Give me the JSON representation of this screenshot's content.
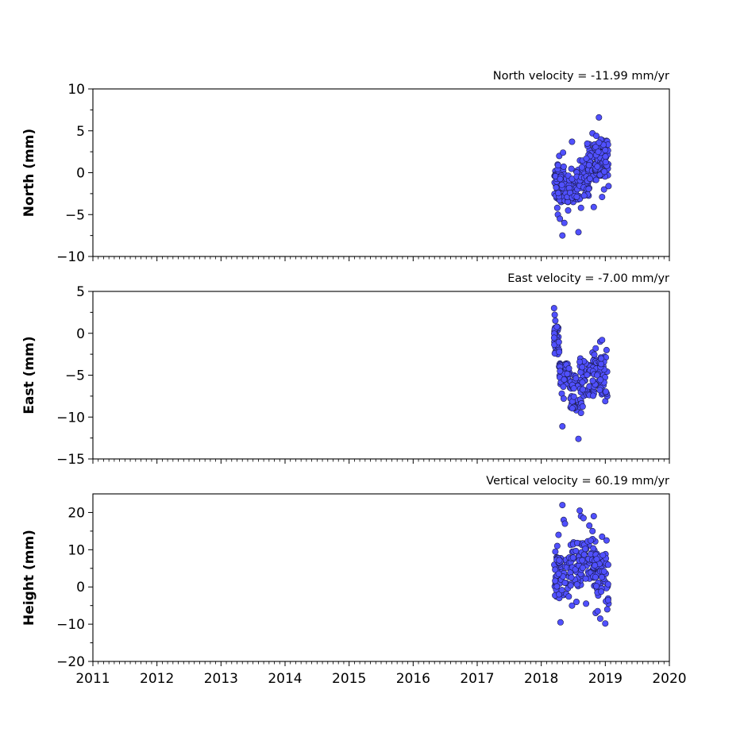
{
  "chart_data": [
    {
      "type": "scatter",
      "ylabel": "North (mm)",
      "annotation": "North velocity = -11.99 mm/yr",
      "ylim": [
        -10,
        10
      ],
      "yticks": [
        -10,
        -5,
        0,
        5,
        10
      ],
      "ytick_labels": [
        "−10",
        "−5",
        "0",
        "5",
        "10"
      ],
      "color": "#5050ff",
      "seed": 11,
      "points": [
        [
          2018.22,
          0.2
        ],
        [
          2018.23,
          -1.5
        ],
        [
          2018.24,
          -3.0
        ],
        [
          2018.25,
          -4.2
        ],
        [
          2018.26,
          -5.0
        ],
        [
          2018.27,
          -2.0
        ],
        [
          2018.28,
          2.0
        ],
        [
          2018.29,
          -5.5
        ],
        [
          2018.3,
          -1.0
        ],
        [
          2018.31,
          -3.5
        ],
        [
          2018.33,
          -7.5
        ],
        [
          2018.34,
          2.4
        ],
        [
          2018.36,
          -6.0
        ],
        [
          2018.38,
          -2.5
        ],
        [
          2018.42,
          -4.5
        ],
        [
          2018.48,
          3.7
        ],
        [
          2018.5,
          -3.5
        ],
        [
          2018.58,
          -7.1
        ],
        [
          2018.62,
          -4.2
        ],
        [
          2018.75,
          3.4
        ],
        [
          2018.8,
          4.7
        ],
        [
          2018.82,
          -4.1
        ],
        [
          2018.86,
          4.4
        ],
        [
          2018.9,
          6.6
        ],
        [
          2018.93,
          3.2
        ],
        [
          2018.95,
          -2.9
        ],
        [
          2018.98,
          -2.0
        ],
        [
          2019.02,
          3.8
        ],
        [
          2019.04,
          -0.3
        ],
        [
          2019.05,
          -1.6
        ]
      ],
      "clusters": [
        {
          "x": [
            2018.2,
            2018.4
          ],
          "y": [
            -3.5,
            1.0
          ],
          "n": 55
        },
        {
          "x": [
            2018.4,
            2018.65
          ],
          "y": [
            -3.5,
            0.5
          ],
          "n": 45
        },
        {
          "x": [
            2018.55,
            2018.75
          ],
          "y": [
            -3.0,
            1.5
          ],
          "n": 40
        },
        {
          "x": [
            2018.7,
            2018.9
          ],
          "y": [
            -1.0,
            3.5
          ],
          "n": 45
        },
        {
          "x": [
            2018.85,
            2019.05
          ],
          "y": [
            -0.5,
            4.0
          ],
          "n": 50
        }
      ]
    },
    {
      "type": "scatter",
      "ylabel": "East (mm)",
      "annotation": "East velocity = -7.00 mm/yr",
      "ylim": [
        -15,
        5
      ],
      "yticks": [
        -15,
        -10,
        -5,
        0,
        5
      ],
      "ytick_labels": [
        "−15",
        "−10",
        "−5",
        "0",
        "5"
      ],
      "color": "#5050ff",
      "seed": 23,
      "points": [
        [
          2018.2,
          3.0
        ],
        [
          2018.21,
          2.2
        ],
        [
          2018.22,
          1.5
        ],
        [
          2018.23,
          0.5
        ],
        [
          2018.24,
          -0.5
        ],
        [
          2018.25,
          -1.5
        ],
        [
          2018.26,
          -2.5
        ],
        [
          2018.28,
          -4.0
        ],
        [
          2018.3,
          -5.0
        ],
        [
          2018.32,
          -7.2
        ],
        [
          2018.33,
          -11.1
        ],
        [
          2018.35,
          -7.8
        ],
        [
          2018.37,
          -4.5
        ],
        [
          2018.4,
          -6.0
        ],
        [
          2018.45,
          -6.5
        ],
        [
          2018.5,
          -8.5
        ],
        [
          2018.55,
          -9.2
        ],
        [
          2018.58,
          -12.6
        ],
        [
          2018.62,
          -9.5
        ],
        [
          2018.7,
          -7.0
        ],
        [
          2018.8,
          -2.3
        ],
        [
          2018.85,
          -1.8
        ],
        [
          2018.92,
          -1.0
        ],
        [
          2018.95,
          -0.8
        ],
        [
          2019.0,
          -8.1
        ],
        [
          2019.02,
          -2.0
        ],
        [
          2019.03,
          -7.5
        ]
      ],
      "clusters": [
        {
          "x": [
            2018.2,
            2018.28
          ],
          "y": [
            -2.5,
            1.0
          ],
          "n": 35
        },
        {
          "x": [
            2018.28,
            2018.45
          ],
          "y": [
            -6.5,
            -3.5
          ],
          "n": 40
        },
        {
          "x": [
            2018.45,
            2018.65
          ],
          "y": [
            -9.0,
            -5.0
          ],
          "n": 45
        },
        {
          "x": [
            2018.6,
            2018.85
          ],
          "y": [
            -7.5,
            -3.0
          ],
          "n": 50
        },
        {
          "x": [
            2018.8,
            2019.05
          ],
          "y": [
            -7.5,
            -2.5
          ],
          "n": 55
        }
      ]
    },
    {
      "type": "scatter",
      "ylabel": "Height (mm)",
      "annotation": "Vertical velocity = 60.19 mm/yr",
      "ylim": [
        -20,
        25
      ],
      "yticks": [
        -20,
        -10,
        0,
        10,
        20
      ],
      "ytick_labels": [
        "−20",
        "−10",
        "0",
        "10",
        "20"
      ],
      "color": "#5050ff",
      "seed": 37,
      "points": [
        [
          2018.22,
          9.5
        ],
        [
          2018.25,
          11.0
        ],
        [
          2018.27,
          14.0
        ],
        [
          2018.3,
          -9.5
        ],
        [
          2018.33,
          22.0
        ],
        [
          2018.35,
          18.0
        ],
        [
          2018.37,
          17.0
        ],
        [
          2018.48,
          -5.0
        ],
        [
          2018.55,
          -4.0
        ],
        [
          2018.6,
          20.5
        ],
        [
          2018.62,
          19.0
        ],
        [
          2018.66,
          18.5
        ],
        [
          2018.7,
          -4.5
        ],
        [
          2018.75,
          16.5
        ],
        [
          2018.8,
          15.0
        ],
        [
          2018.82,
          19.0
        ],
        [
          2018.85,
          -7.0
        ],
        [
          2018.88,
          -6.5
        ],
        [
          2018.92,
          -8.5
        ],
        [
          2018.95,
          13.5
        ],
        [
          2019.0,
          -9.8
        ],
        [
          2019.02,
          12.5
        ],
        [
          2019.03,
          -6.0
        ],
        [
          2019.05,
          -4.5
        ]
      ],
      "clusters": [
        {
          "x": [
            2018.2,
            2018.45
          ],
          "y": [
            -3.0,
            8.0
          ],
          "n": 60
        },
        {
          "x": [
            2018.45,
            2018.65
          ],
          "y": [
            0.0,
            12.0
          ],
          "n": 45
        },
        {
          "x": [
            2018.62,
            2018.85
          ],
          "y": [
            2.0,
            13.0
          ],
          "n": 50
        },
        {
          "x": [
            2018.8,
            2019.05
          ],
          "y": [
            -4.0,
            9.0
          ],
          "n": 55
        }
      ]
    }
  ],
  "x_axis": {
    "xlim": [
      2011,
      2020
    ],
    "ticks": [
      2011,
      2012,
      2013,
      2014,
      2015,
      2016,
      2017,
      2018,
      2019,
      2020
    ],
    "tick_labels": [
      "2011",
      "2012",
      "2013",
      "2014",
      "2015",
      "2016",
      "2017",
      "2018",
      "2019",
      "2020"
    ],
    "minor_per_major": 12
  }
}
